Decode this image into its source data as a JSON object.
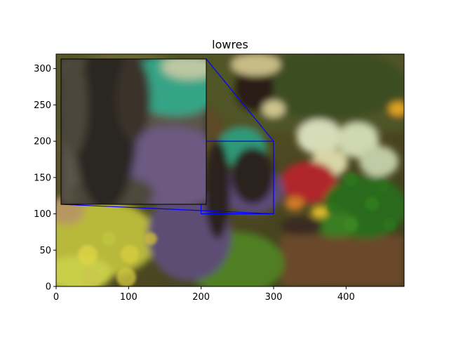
{
  "chart_data": {
    "type": "image",
    "title": "lowres",
    "xlabel": "",
    "ylabel": "",
    "xlim": [
      0,
      480
    ],
    "ylim": [
      0,
      320
    ],
    "xticks": [
      0,
      100,
      200,
      300,
      400
    ],
    "yticks": [
      0,
      50,
      100,
      150,
      200,
      250,
      300
    ],
    "inset": {
      "xlim": [
        200,
        300
      ],
      "ylim": [
        100,
        200
      ],
      "indicator_color": "#0000ff"
    }
  }
}
